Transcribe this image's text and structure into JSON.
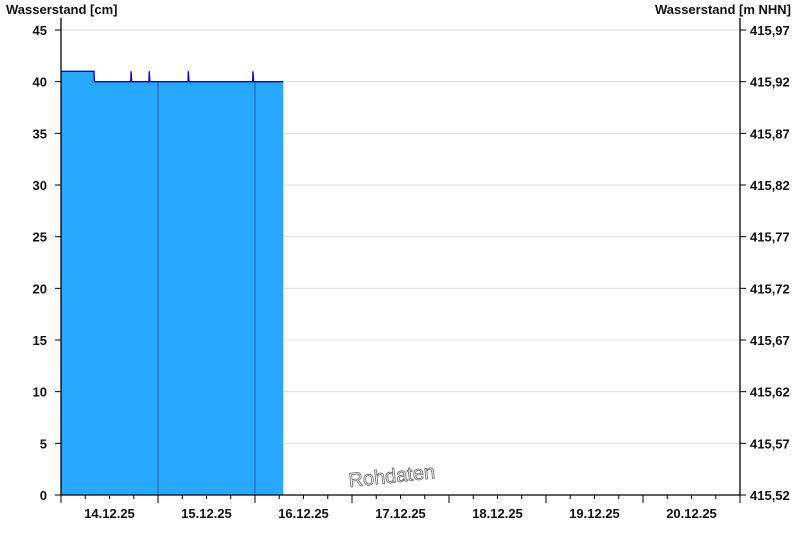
{
  "chart_data": {
    "type": "area",
    "ylabel_left": "Wasserstand [cm]",
    "ylabel_right": "Wasserstand [m NHN]",
    "watermark": "Rohdaten",
    "xlim": [
      "14.12.25 00:00",
      "21.12.25 00:00"
    ],
    "x_tick_labels": [
      "14.12.25",
      "15.12.25",
      "16.12.25",
      "17.12.25",
      "18.12.25",
      "19.12.25",
      "20.12.25"
    ],
    "ylim_left": [
      0,
      45
    ],
    "y_ticks_left": [
      "0",
      "5",
      "10",
      "15",
      "20",
      "25",
      "30",
      "35",
      "40",
      "45"
    ],
    "ylim_right": [
      415.52,
      415.97
    ],
    "y_ticks_right": [
      "415,52",
      "415,57",
      "415,62",
      "415,67",
      "415,72",
      "415,77",
      "415,82",
      "415,87",
      "415,92",
      "415,97"
    ],
    "grid": true,
    "fill_color": "#29a8ff",
    "line_color": "#0000ee",
    "series": [
      {
        "values": [
          [
            "14.12.25 00:00",
            41
          ],
          [
            "14.12.25 08:10",
            41
          ],
          [
            "14.12.25 08:15",
            40
          ],
          [
            "14.12.25 17:15",
            40
          ],
          [
            "14.12.25 17:20",
            41
          ],
          [
            "14.12.25 17:30",
            40
          ],
          [
            "14.12.25 21:45",
            40
          ],
          [
            "14.12.25 21:50",
            41
          ],
          [
            "14.12.25 22:00",
            40
          ],
          [
            "15.12.25 07:25",
            40
          ],
          [
            "15.12.25 07:30",
            41
          ],
          [
            "15.12.25 07:40",
            40
          ],
          [
            "15.12.25 23:25",
            40
          ],
          [
            "15.12.25 23:30",
            41
          ],
          [
            "15.12.25 23:40",
            40
          ],
          [
            "16.12.25 07:00",
            40
          ]
        ]
      }
    ]
  }
}
